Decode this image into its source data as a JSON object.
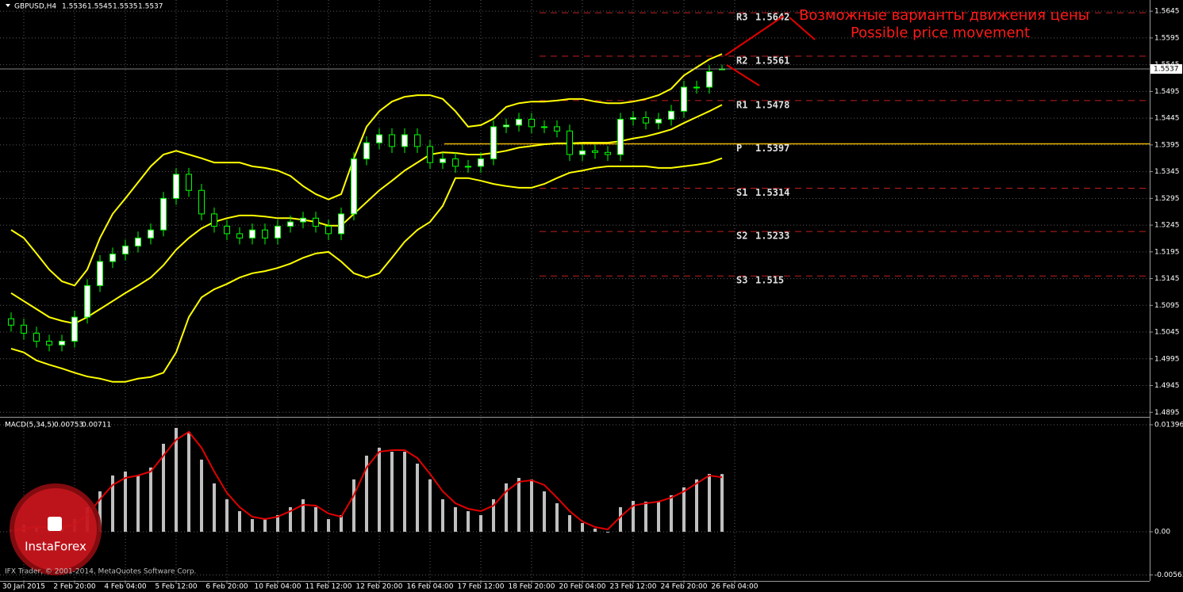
{
  "chart_data": [
    {
      "type": "candlestick",
      "title": "GBPUSD,H4",
      "categories": [
        null,
        "30 Jan 2015",
        null,
        null,
        null,
        "2 Feb 20:00",
        null,
        null,
        null,
        "4 Feb 04:00",
        null,
        null,
        null,
        "5 Feb 12:00",
        null,
        null,
        null,
        "6 Feb 20:00",
        null,
        null,
        null,
        "10 Feb 04:00",
        null,
        null,
        null,
        "11 Feb 12:00",
        null,
        null,
        null,
        "12 Feb 20:00",
        null,
        null,
        null,
        "16 Feb 04:00",
        null,
        null,
        null,
        "17 Feb 12:00",
        null,
        null,
        null,
        "18 Feb 20:00",
        null,
        null,
        null,
        "20 Feb 04:00",
        null,
        null,
        null,
        "23 Feb 12:00",
        null,
        null,
        null,
        "24 Feb 20:00",
        null,
        null,
        null,
        "26 Feb 04:00"
      ],
      "open": [
        1.507,
        1.5058,
        1.5043,
        1.5028,
        1.5021,
        1.5028,
        1.5073,
        1.5132,
        1.5177,
        1.5191,
        1.5206,
        1.5221,
        1.5236,
        1.5295,
        1.534,
        1.531,
        1.5266,
        1.5243,
        1.5229,
        1.5221,
        1.5236,
        1.5221,
        1.5243,
        1.5251,
        1.5258,
        1.5243,
        1.5229,
        1.5266,
        1.5369,
        1.5399,
        1.5414,
        1.5392,
        1.5414,
        1.5392,
        1.5362,
        1.5369,
        1.5355,
        1.5355,
        1.5369,
        1.5429,
        1.5432,
        1.5443,
        1.5429,
        1.5429,
        1.5421,
        1.5377,
        1.5384,
        1.5381,
        1.5377,
        1.5443,
        1.5446,
        1.5436,
        1.5443,
        1.5458,
        1.5503,
        1.5503,
        1.5536,
        null
      ],
      "high": [
        1.5082,
        1.507,
        1.5055,
        1.504,
        1.504,
        1.5085,
        1.5144,
        1.5189,
        1.5203,
        1.5218,
        1.5233,
        1.5248,
        1.5307,
        1.5352,
        1.5352,
        1.5322,
        1.5278,
        1.5255,
        1.5241,
        1.5248,
        1.5248,
        1.5255,
        1.5263,
        1.527,
        1.527,
        1.5255,
        1.5278,
        1.5381,
        1.5411,
        1.5426,
        1.5426,
        1.5426,
        1.5426,
        1.5404,
        1.5381,
        1.5381,
        1.5367,
        1.5381,
        1.5441,
        1.5444,
        1.5455,
        1.5455,
        1.5441,
        1.5441,
        1.5433,
        1.5396,
        1.5396,
        1.5393,
        1.5455,
        1.5458,
        1.5458,
        1.5455,
        1.547,
        1.5515,
        1.5515,
        1.5544,
        1.5545,
        null
      ],
      "low": [
        1.5046,
        1.5031,
        1.5016,
        1.5009,
        1.5009,
        1.5016,
        1.5061,
        1.512,
        1.5165,
        1.5179,
        1.5194,
        1.5209,
        1.5224,
        1.5283,
        1.5298,
        1.5254,
        1.5231,
        1.5217,
        1.5209,
        1.5209,
        1.5209,
        1.5209,
        1.5231,
        1.5239,
        1.5231,
        1.5217,
        1.5217,
        1.5254,
        1.5357,
        1.5387,
        1.538,
        1.538,
        1.538,
        1.535,
        1.535,
        1.5343,
        1.5343,
        1.5343,
        1.5357,
        1.5417,
        1.542,
        1.5417,
        1.5417,
        1.5409,
        1.5365,
        1.5365,
        1.5369,
        1.5365,
        1.5365,
        1.5431,
        1.5424,
        1.5424,
        1.5431,
        1.5446,
        1.5491,
        1.5491,
        1.5535,
        null
      ],
      "close": [
        1.5058,
        1.5043,
        1.5028,
        1.5021,
        1.5028,
        1.5073,
        1.5132,
        1.5177,
        1.5191,
        1.5206,
        1.5221,
        1.5236,
        1.5295,
        1.534,
        1.531,
        1.5266,
        1.5243,
        1.5229,
        1.5221,
        1.5236,
        1.5221,
        1.5243,
        1.5251,
        1.5258,
        1.5243,
        1.5229,
        1.5266,
        1.5369,
        1.5399,
        1.5414,
        1.5392,
        1.5414,
        1.5392,
        1.5362,
        1.5369,
        1.5355,
        1.5355,
        1.5369,
        1.5429,
        1.5432,
        1.5443,
        1.5429,
        1.5429,
        1.5421,
        1.5377,
        1.5384,
        1.5381,
        1.5377,
        1.5443,
        1.5446,
        1.5436,
        1.5443,
        1.5458,
        1.5503,
        1.5503,
        1.5532,
        1.5537,
        null
      ],
      "candle_color": "#00ff00",
      "bands": {
        "color": "#ffff00",
        "upper": [
          1.5236,
          1.5221,
          1.5192,
          1.5162,
          1.514,
          1.5132,
          1.5162,
          1.5221,
          1.5266,
          1.5295,
          1.5325,
          1.5355,
          1.5377,
          1.5384,
          1.5377,
          1.537,
          1.5362,
          1.5362,
          1.5362,
          1.5355,
          1.5352,
          1.5347,
          1.5337,
          1.5318,
          1.5303,
          1.5293,
          1.5303,
          1.537,
          1.5429,
          1.5458,
          1.5476,
          1.5485,
          1.5488,
          1.5488,
          1.5481,
          1.5458,
          1.5429,
          1.5432,
          1.5444,
          1.5466,
          1.5473,
          1.5476,
          1.5476,
          1.5478,
          1.5481,
          1.5481,
          1.5476,
          1.5473,
          1.5473,
          1.5476,
          1.5481,
          1.5488,
          1.55,
          1.5525,
          1.554,
          1.5555,
          1.5565,
          null
        ],
        "middle": [
          1.5118,
          1.5103,
          1.5088,
          1.5073,
          1.5066,
          1.5061,
          1.5073,
          1.5088,
          1.5103,
          1.5118,
          1.5132,
          1.5147,
          1.517,
          1.5199,
          1.5221,
          1.5239,
          1.5251,
          1.5258,
          1.5263,
          1.5263,
          1.5261,
          1.5258,
          1.5258,
          1.5255,
          1.5251,
          1.5244,
          1.5244,
          1.5266,
          1.5288,
          1.531,
          1.5328,
          1.5347,
          1.5362,
          1.5377,
          1.5381,
          1.538,
          1.5377,
          1.5377,
          1.538,
          1.5384,
          1.539,
          1.5393,
          1.5396,
          1.5398,
          1.5398,
          1.5399,
          1.5399,
          1.5399,
          1.5402,
          1.5407,
          1.5411,
          1.5417,
          1.5424,
          1.5436,
          1.5447,
          1.5458,
          1.547,
          null
        ],
        "lower": [
          1.5014,
          1.5007,
          1.4992,
          1.4984,
          1.4977,
          1.4969,
          1.4962,
          1.4958,
          1.4952,
          1.4952,
          1.4958,
          1.4961,
          1.4969,
          1.5007,
          1.5073,
          1.511,
          1.5125,
          1.5135,
          1.5147,
          1.5155,
          1.5159,
          1.5165,
          1.5173,
          1.5184,
          1.5192,
          1.5195,
          1.5177,
          1.5155,
          1.5147,
          1.5155,
          1.5184,
          1.5214,
          1.5236,
          1.5251,
          1.5281,
          1.5333,
          1.5333,
          1.5328,
          1.5322,
          1.5318,
          1.5315,
          1.5315,
          1.5322,
          1.5333,
          1.5343,
          1.5347,
          1.5352,
          1.5355,
          1.5355,
          1.5355,
          1.5355,
          1.5352,
          1.5352,
          1.5355,
          1.5358,
          1.5362,
          1.537,
          null
        ]
      },
      "pivots": [
        {
          "label": "R3",
          "value": 1.5642
        },
        {
          "label": "R2",
          "value": 1.5561
        },
        {
          "label": "R1",
          "value": 1.5478
        },
        {
          "label": "P",
          "value": 1.5397
        },
        {
          "label": "S1",
          "value": 1.5314
        },
        {
          "label": "S2",
          "value": 1.5233
        },
        {
          "label": "S3",
          "value": 1.515
        }
      ],
      "annotations": [
        "Возможные варианты движения цены",
        "Possible price movement"
      ],
      "ylim": [
        1.4888,
        1.5663
      ],
      "yticks": [
        1.4895,
        1.4945,
        1.4995,
        1.5045,
        1.5095,
        1.5145,
        1.5195,
        1.5245,
        1.5295,
        1.5345,
        1.5395,
        1.5445,
        1.5495,
        1.5545,
        1.5595,
        1.5645
      ],
      "grid": true
    },
    {
      "type": "bar",
      "title": "MACD(5,34,5)",
      "color": "#c0c0c0",
      "values": [
        0.00031,
        0.00093,
        0.00062,
        0.00031,
        0.00062,
        0.00165,
        0.00321,
        0.00527,
        0.00734,
        0.00786,
        0.00734,
        0.00838,
        0.01148,
        0.01355,
        0.01303,
        0.00941,
        0.00631,
        0.00424,
        0.00269,
        0.00165,
        0.00165,
        0.00217,
        0.00321,
        0.00424,
        0.00321,
        0.00165,
        0.00217,
        0.00683,
        0.00993,
        0.01096,
        0.01044,
        0.01044,
        0.00889,
        0.00683,
        0.00424,
        0.00321,
        0.00269,
        0.00217,
        0.00424,
        0.00631,
        0.00703,
        0.00683,
        0.00527,
        0.00372,
        0.00217,
        0.00114,
        0.00041,
        -0.0001,
        0.00321,
        0.00403,
        0.00393,
        0.00403,
        0.00476,
        0.00579,
        0.00683,
        0.00755,
        0.00753,
        null
      ],
      "signal": {
        "color": "#e00000",
        "values": [
          0.0001,
          0.00041,
          0.00062,
          0.00062,
          0.00062,
          0.00093,
          0.00217,
          0.00424,
          0.0061,
          0.00703,
          0.00734,
          0.00786,
          0.00993,
          0.012,
          0.01303,
          0.01096,
          0.00786,
          0.00507,
          0.00321,
          0.00196,
          0.00165,
          0.00196,
          0.00269,
          0.00352,
          0.00341,
          0.00238,
          0.00196,
          0.00476,
          0.00838,
          0.01044,
          0.01065,
          0.01065,
          0.00962,
          0.00755,
          0.00527,
          0.00372,
          0.003,
          0.00269,
          0.00341,
          0.00527,
          0.00652,
          0.00672,
          0.0061,
          0.00445,
          0.00269,
          0.00134,
          0.00062,
          0.00031,
          0.00196,
          0.00341,
          0.00372,
          0.00393,
          0.00445,
          0.00527,
          0.00631,
          0.00734,
          0.00711,
          null
        ]
      },
      "ylim": [
        -0.00641,
        0.01468
      ],
      "yticks": [
        -0.00563,
        {
          "value": 0,
          "label": "0.00"
        },
        0.01396
      ],
      "grid": true
    }
  ],
  "copyright": "IFX Trader, © 2001-2014, MetaQuotes Software Corp.",
  "logo": "InstaForex"
}
